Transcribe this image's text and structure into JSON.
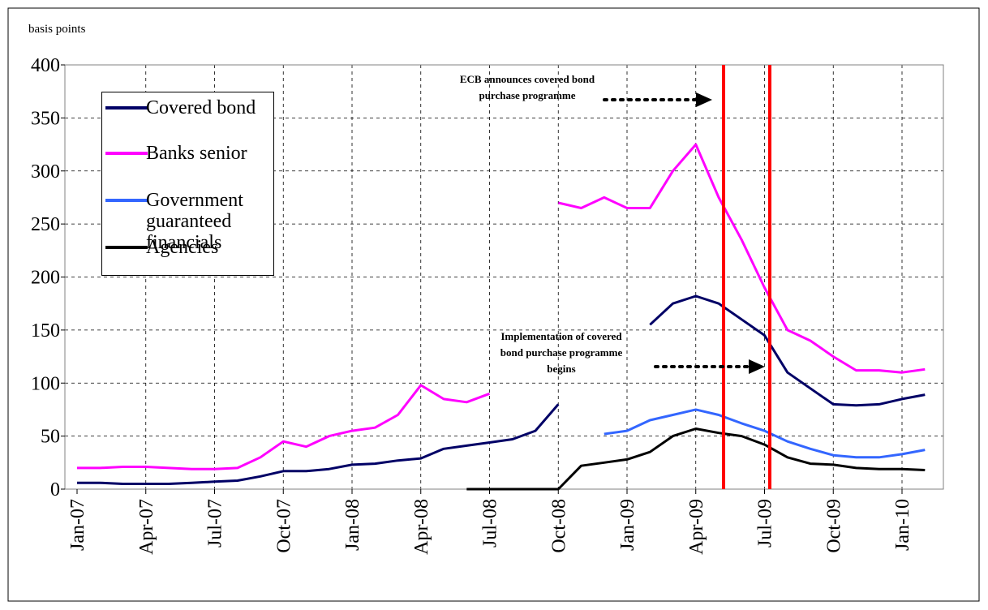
{
  "chart_data": {
    "type": "line",
    "y_label": "basis points",
    "categories": [
      "Jan-07",
      null,
      null,
      "Apr-07",
      null,
      null,
      "Jul-07",
      null,
      null,
      "Oct-07",
      null,
      null,
      "Jan-08",
      null,
      null,
      "Apr-08",
      null,
      null,
      "Jul-08",
      null,
      null,
      "Oct-08",
      null,
      null,
      "Jan-09",
      null,
      null,
      "Apr-09",
      null,
      null,
      "Jul-09",
      null,
      null,
      "Oct-09",
      null,
      null,
      "Jan-10",
      null
    ],
    "series": [
      {
        "name": "Covered bond",
        "color": "#000066",
        "values": [
          6,
          6,
          5,
          5,
          5,
          6,
          7,
          8,
          12,
          17,
          17,
          19,
          23,
          24,
          27,
          29,
          38,
          41,
          44,
          47,
          55,
          80,
          null,
          null,
          null,
          155,
          175,
          182,
          175,
          160,
          145,
          110,
          95,
          80,
          79,
          80,
          85,
          89
        ]
      },
      {
        "name": "Banks senior",
        "color": "#ff00ff",
        "values": [
          20,
          20,
          21,
          21,
          20,
          19,
          19,
          20,
          30,
          45,
          40,
          50,
          55,
          58,
          70,
          98,
          85,
          82,
          90,
          null,
          null,
          270,
          265,
          275,
          265,
          265,
          300,
          325,
          275,
          235,
          190,
          150,
          140,
          125,
          112,
          112,
          110,
          113
        ]
      },
      {
        "name": "Government guaranteed financials",
        "color": "#3366ff",
        "values": [
          null,
          null,
          null,
          null,
          null,
          null,
          null,
          null,
          null,
          null,
          null,
          null,
          null,
          null,
          null,
          null,
          null,
          null,
          null,
          null,
          null,
          null,
          null,
          52,
          55,
          65,
          70,
          75,
          70,
          62,
          55,
          45,
          38,
          32,
          30,
          30,
          33,
          37
        ]
      },
      {
        "name": "Agencies",
        "color": "#000000",
        "values": [
          null,
          null,
          null,
          null,
          null,
          null,
          null,
          null,
          null,
          null,
          null,
          null,
          null,
          null,
          null,
          null,
          null,
          0,
          0,
          0,
          0,
          0,
          22,
          25,
          28,
          35,
          50,
          57,
          53,
          50,
          42,
          30,
          24,
          23,
          20,
          19,
          19,
          18
        ]
      }
    ],
    "ylim": [
      0,
      400
    ],
    "yticks": [
      0,
      50,
      100,
      150,
      200,
      250,
      300,
      350,
      400
    ],
    "grid": true,
    "annotations": [
      "ECB announces covered bond purchase programme",
      "Implementation of covered bond purchase programme begins"
    ]
  }
}
